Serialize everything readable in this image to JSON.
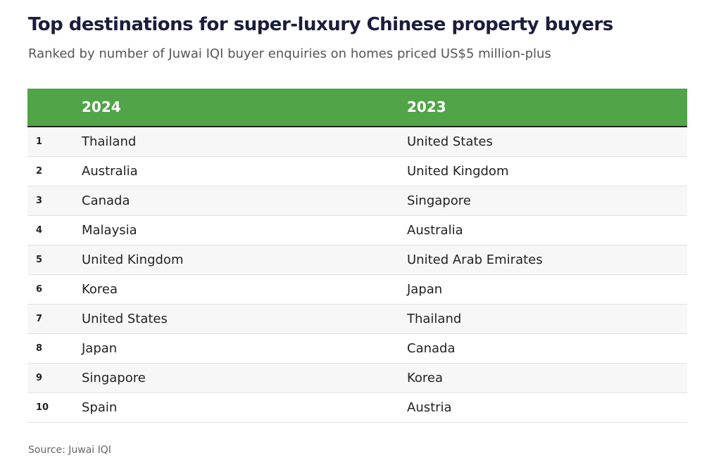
{
  "header": {
    "title": "Top destinations for super-luxury Chinese property buyers",
    "subtitle": "Ranked by number of Juwai IQI buyer enquiries on homes priced US$5 million-plus"
  },
  "table": {
    "columns": [
      "2024",
      "2023"
    ],
    "rows": [
      [
        1,
        "Thailand",
        "United States"
      ],
      [
        2,
        "Australia",
        "United Kingdom"
      ],
      [
        3,
        "Canada",
        "Singapore"
      ],
      [
        4,
        "Malaysia",
        "Australia"
      ],
      [
        5,
        "United Kingdom",
        "United Arab Emirates"
      ],
      [
        6,
        "Korea",
        "Japan"
      ],
      [
        7,
        "United States",
        "Thailand"
      ],
      [
        8,
        "Japan",
        "Canada"
      ],
      [
        9,
        "Singapore",
        "Korea"
      ],
      [
        10,
        "Spain",
        "Austria"
      ]
    ]
  },
  "footer": {
    "source": "Source: Juwai IQI"
  }
}
